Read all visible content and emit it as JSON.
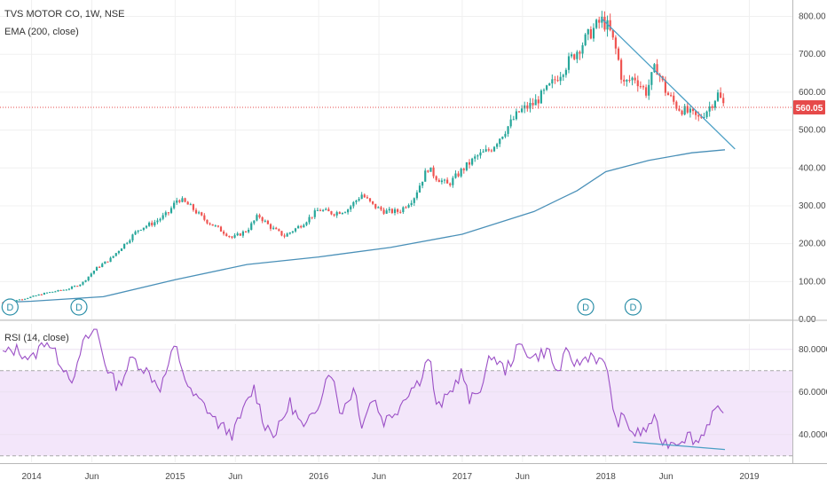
{
  "header": {
    "symbol_line": "TVS MOTOR CO, 1W, NSE",
    "indicator_line": "EMA (200, close)"
  },
  "rsi_panel": {
    "label": "RSI (14, close)"
  },
  "colors": {
    "up": "#26a69a",
    "down": "#ef5350",
    "ema": "#4a90b8",
    "trendline": "#4a9fc5",
    "rsi": "#9b4fc6",
    "rsi_band": "#f3e6fa",
    "price_tag": "#e64a4a",
    "marker": "#2c8fa8"
  },
  "chart_data": [
    {
      "type": "candlestick",
      "title": "TVS MOTOR CO, 1W, NSE",
      "ylim": [
        0,
        820
      ],
      "y_ticks": [
        "800.00",
        "700.00",
        "600.00",
        "500.00",
        "400.00",
        "300.00",
        "200.00",
        "100.00",
        "0.00"
      ],
      "y_tick_values": [
        800,
        700,
        600,
        500,
        400,
        300,
        200,
        100,
        0
      ],
      "x_ticks": [
        "2014",
        "Jun",
        "2015",
        "Jun",
        "2016",
        "Jun",
        "2017",
        "Jun",
        "2018",
        "Jun",
        "2019"
      ],
      "x_tick_values": [
        2014.0,
        2014.42,
        2015.0,
        2015.42,
        2016.0,
        2016.42,
        2017.0,
        2017.42,
        2018.0,
        2018.42,
        2019.0
      ],
      "xlim": [
        2013.78,
        2019.3
      ],
      "current_price": "560.05",
      "current_price_value": 560.05,
      "price_anchors": [
        [
          2013.8,
          45
        ],
        [
          2013.95,
          55
        ],
        [
          2014.1,
          70
        ],
        [
          2014.25,
          80
        ],
        [
          2014.35,
          95
        ],
        [
          2014.45,
          135
        ],
        [
          2014.55,
          160
        ],
        [
          2014.65,
          200
        ],
        [
          2014.75,
          240
        ],
        [
          2014.85,
          255
        ],
        [
          2014.95,
          280
        ],
        [
          2015.02,
          320
        ],
        [
          2015.1,
          300
        ],
        [
          2015.2,
          265
        ],
        [
          2015.3,
          240
        ],
        [
          2015.4,
          215
        ],
        [
          2015.5,
          235
        ],
        [
          2015.58,
          275
        ],
        [
          2015.66,
          245
        ],
        [
          2015.76,
          220
        ],
        [
          2015.88,
          250
        ],
        [
          2016.0,
          290
        ],
        [
          2016.1,
          280
        ],
        [
          2016.2,
          290
        ],
        [
          2016.3,
          330
        ],
        [
          2016.38,
          300
        ],
        [
          2016.46,
          285
        ],
        [
          2016.56,
          285
        ],
        [
          2016.66,
          320
        ],
        [
          2016.76,
          400
        ],
        [
          2016.82,
          375
        ],
        [
          2016.9,
          355
        ],
        [
          2017.0,
          395
        ],
        [
          2017.1,
          430
        ],
        [
          2017.2,
          450
        ],
        [
          2017.3,
          500
        ],
        [
          2017.4,
          550
        ],
        [
          2017.5,
          570
        ],
        [
          2017.6,
          610
        ],
        [
          2017.7,
          660
        ],
        [
          2017.8,
          710
        ],
        [
          2017.9,
          760
        ],
        [
          2017.97,
          790
        ],
        [
          2018.02,
          770
        ],
        [
          2018.08,
          700
        ],
        [
          2018.12,
          620
        ],
        [
          2018.2,
          640
        ],
        [
          2018.28,
          600
        ],
        [
          2018.35,
          670
        ],
        [
          2018.42,
          600
        ],
        [
          2018.5,
          560
        ],
        [
          2018.58,
          545
        ],
        [
          2018.65,
          530
        ],
        [
          2018.72,
          560
        ],
        [
          2018.78,
          595
        ],
        [
          2018.83,
          560
        ]
      ],
      "ema": {
        "name": "EMA (200, close)",
        "points": [
          [
            2013.8,
            45
          ],
          [
            2014.0,
            48
          ],
          [
            2014.5,
            60
          ],
          [
            2015.0,
            105
          ],
          [
            2015.5,
            145
          ],
          [
            2016.0,
            165
          ],
          [
            2016.5,
            190
          ],
          [
            2017.0,
            225
          ],
          [
            2017.5,
            285
          ],
          [
            2017.8,
            340
          ],
          [
            2018.0,
            390
          ],
          [
            2018.3,
            420
          ],
          [
            2018.6,
            440
          ],
          [
            2018.83,
            448
          ]
        ]
      },
      "trendline": [
        [
          2017.97,
          795
        ],
        [
          2018.9,
          450
        ]
      ],
      "dividend_markers": [
        {
          "label": "D",
          "x": 2013.85
        },
        {
          "label": "D",
          "x": 2014.33
        },
        {
          "label": "D",
          "x": 2017.86
        },
        {
          "label": "D",
          "x": 2018.19
        }
      ]
    },
    {
      "type": "line",
      "title": "RSI (14, close)",
      "ylim": [
        27,
        92
      ],
      "y_ticks": [
        "80.0000",
        "60.0000",
        "40.0000"
      ],
      "y_tick_values": [
        80,
        60,
        40
      ],
      "band": [
        30,
        70
      ],
      "x_ticks": [
        "2014",
        "Jun",
        "2015",
        "Jun",
        "2016",
        "Jun",
        "2017",
        "Jun",
        "2018",
        "Jun",
        "2019"
      ],
      "x_tick_values": [
        2014.0,
        2014.42,
        2015.0,
        2015.42,
        2016.0,
        2016.42,
        2017.0,
        2017.42,
        2018.0,
        2018.42,
        2019.0
      ],
      "xlim": [
        2013.78,
        2019.3
      ],
      "rsi_anchors": [
        [
          2013.8,
          78
        ],
        [
          2013.9,
          80
        ],
        [
          2014.0,
          75
        ],
        [
          2014.1,
          85
        ],
        [
          2014.2,
          74
        ],
        [
          2014.3,
          65
        ],
        [
          2014.35,
          82
        ],
        [
          2014.45,
          90
        ],
        [
          2014.52,
          72
        ],
        [
          2014.6,
          62
        ],
        [
          2014.7,
          76
        ],
        [
          2014.8,
          70
        ],
        [
          2014.9,
          62
        ],
        [
          2015.0,
          82
        ],
        [
          2015.1,
          60
        ],
        [
          2015.2,
          54
        ],
        [
          2015.3,
          45
        ],
        [
          2015.4,
          40
        ],
        [
          2015.5,
          55
        ],
        [
          2015.55,
          62
        ],
        [
          2015.62,
          45
        ],
        [
          2015.7,
          40
        ],
        [
          2015.8,
          55
        ],
        [
          2015.9,
          42
        ],
        [
          2016.0,
          55
        ],
        [
          2016.08,
          72
        ],
        [
          2016.15,
          50
        ],
        [
          2016.25,
          62
        ],
        [
          2016.3,
          45
        ],
        [
          2016.38,
          58
        ],
        [
          2016.45,
          46
        ],
        [
          2016.55,
          52
        ],
        [
          2016.62,
          60
        ],
        [
          2016.7,
          65
        ],
        [
          2016.77,
          78
        ],
        [
          2016.82,
          52
        ],
        [
          2016.9,
          58
        ],
        [
          2017.0,
          70
        ],
        [
          2017.05,
          55
        ],
        [
          2017.15,
          65
        ],
        [
          2017.2,
          78
        ],
        [
          2017.3,
          70
        ],
        [
          2017.4,
          82
        ],
        [
          2017.5,
          76
        ],
        [
          2017.6,
          80
        ],
        [
          2017.66,
          68
        ],
        [
          2017.72,
          78
        ],
        [
          2017.8,
          73
        ],
        [
          2017.9,
          78
        ],
        [
          2017.98,
          73
        ],
        [
          2018.02,
          70
        ],
        [
          2018.06,
          45
        ],
        [
          2018.12,
          48
        ],
        [
          2018.2,
          40
        ],
        [
          2018.28,
          42
        ],
        [
          2018.33,
          48
        ],
        [
          2018.4,
          36
        ],
        [
          2018.5,
          37
        ],
        [
          2018.58,
          40
        ],
        [
          2018.64,
          36
        ],
        [
          2018.7,
          44
        ],
        [
          2018.76,
          52
        ],
        [
          2018.83,
          47
        ]
      ],
      "divergence_line": [
        [
          2018.19,
          36.5
        ],
        [
          2018.83,
          33
        ]
      ]
    }
  ]
}
